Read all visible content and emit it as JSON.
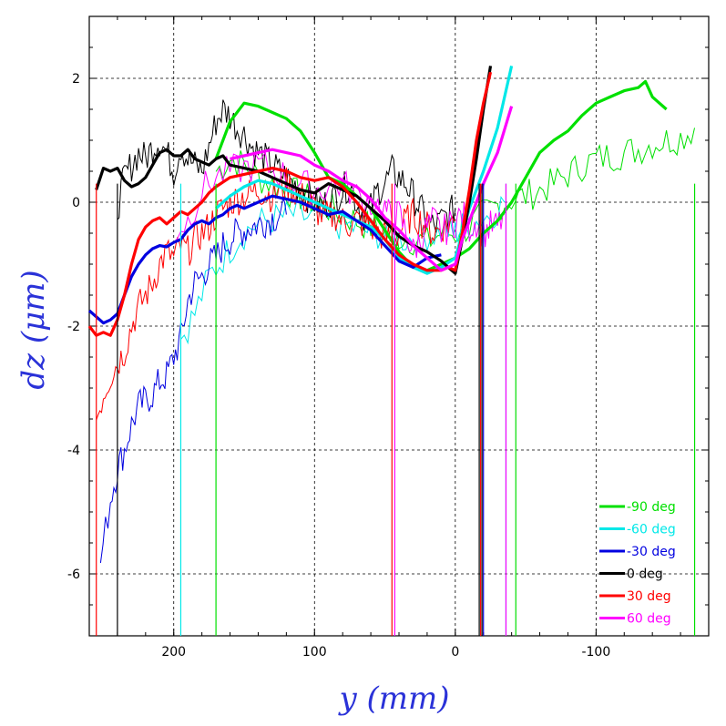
{
  "chart_data": {
    "type": "line",
    "xlabel": "y (mm)",
    "ylabel": "dz (μm)",
    "xlim": [
      260,
      -180
    ],
    "ylim": [
      -7,
      3
    ],
    "x_ticks": [
      200,
      100,
      0,
      -100
    ],
    "x_tick_labels": [
      "200",
      "100",
      "0",
      "-100"
    ],
    "y_ticks": [
      2,
      0,
      -2,
      -4,
      -6
    ],
    "y_tick_labels": [
      "2",
      "0",
      "-2",
      "-4",
      "-6"
    ],
    "grid": true,
    "legend_position": "bottom-right",
    "series": [
      {
        "name": "-90 deg",
        "color": "#00e000",
        "smooth": {
          "x": [
            170,
            160,
            150,
            140,
            130,
            120,
            110,
            100,
            95,
            90,
            80,
            70,
            60,
            50,
            40,
            30,
            20,
            10,
            5,
            0,
            -10,
            -20,
            -30,
            -40,
            -50,
            -60,
            -70,
            -80,
            -90,
            -100,
            -110,
            -120,
            -130,
            -135,
            -140,
            -150
          ],
          "y": [
            0.7,
            1.3,
            1.6,
            1.55,
            1.45,
            1.35,
            1.15,
            0.8,
            0.6,
            0.4,
            0.3,
            0.1,
            -0.1,
            -0.45,
            -0.8,
            -1.05,
            -1.1,
            -1.0,
            -0.95,
            -0.9,
            -0.75,
            -0.5,
            -0.3,
            0.0,
            0.4,
            0.8,
            1.0,
            1.15,
            1.4,
            1.6,
            1.7,
            1.8,
            1.85,
            1.95,
            1.7,
            1.5
          ]
        },
        "raw": {
          "x": [
            170,
            160,
            150,
            140,
            130,
            120,
            110,
            100,
            90,
            80,
            70,
            60,
            50,
            40,
            30,
            20,
            10,
            0,
            -10,
            -20,
            -30,
            -40,
            -50,
            -60,
            -70,
            -80,
            -90,
            -100,
            -110,
            -120,
            -130,
            -140,
            -150,
            -160,
            -170
          ],
          "y": [
            0.5,
            0.7,
            0.6,
            0.4,
            0.3,
            0.2,
            0.1,
            0.0,
            -0.1,
            -0.2,
            -0.3,
            -0.4,
            -0.5,
            -0.55,
            -0.6,
            -0.65,
            -0.5,
            -0.5,
            -0.4,
            -0.2,
            -0.05,
            0.05,
            0.1,
            0.2,
            0.3,
            0.45,
            0.6,
            0.7,
            0.75,
            0.8,
            0.85,
            0.95,
            1.0,
            1.05,
            1.2
          ]
        },
        "drops_x": [
          170,
          -43,
          -170
        ]
      },
      {
        "name": "-60 deg",
        "color": "#00e8e8",
        "smooth": {
          "x": [
            170,
            160,
            150,
            140,
            130,
            120,
            110,
            100,
            90,
            80,
            70,
            60,
            50,
            40,
            30,
            20,
            10,
            0,
            -5,
            -10,
            -20,
            -30,
            -40
          ],
          "y": [
            -0.1,
            0.1,
            0.25,
            0.35,
            0.3,
            0.2,
            0.1,
            0.0,
            -0.1,
            -0.2,
            -0.3,
            -0.4,
            -0.6,
            -0.9,
            -1.05,
            -1.15,
            -1.05,
            -0.9,
            -0.5,
            -0.1,
            0.5,
            1.2,
            2.2
          ]
        },
        "raw": {
          "x": [
            195,
            185,
            175,
            165,
            155,
            145,
            135,
            125,
            115,
            105,
            95,
            85,
            75,
            65,
            55,
            45,
            35,
            25,
            15,
            5,
            0,
            -5,
            -15,
            -25,
            -35
          ],
          "y": [
            -2.2,
            -1.8,
            -1.2,
            -0.9,
            -0.6,
            -0.4,
            -0.3,
            -0.25,
            -0.2,
            -0.25,
            -0.3,
            -0.35,
            -0.4,
            -0.45,
            -0.5,
            -0.55,
            -0.6,
            -0.55,
            -0.5,
            -0.45,
            -0.5,
            -0.4,
            -0.3,
            -0.2,
            0.0
          ]
        },
        "drops_x": [
          195,
          -36
        ]
      },
      {
        "name": "-30 deg",
        "color": "#0000e0",
        "smooth": {
          "x": [
            260,
            250,
            245,
            240,
            235,
            230,
            225,
            220,
            215,
            210,
            205,
            200,
            195,
            190,
            185,
            180,
            175,
            170,
            165,
            160,
            155,
            150,
            145,
            140,
            130,
            120,
            110,
            100,
            90,
            80,
            70,
            60,
            50,
            40,
            30,
            20,
            10
          ],
          "y": [
            -1.75,
            -1.95,
            -1.9,
            -1.8,
            -1.5,
            -1.2,
            -1.0,
            -0.85,
            -0.75,
            -0.7,
            -0.72,
            -0.65,
            -0.6,
            -0.45,
            -0.35,
            -0.3,
            -0.35,
            -0.25,
            -0.2,
            -0.1,
            -0.05,
            -0.1,
            -0.05,
            0.0,
            0.1,
            0.05,
            0.0,
            -0.1,
            -0.2,
            -0.15,
            -0.3,
            -0.45,
            -0.7,
            -0.95,
            -1.05,
            -0.9,
            -0.85
          ]
        },
        "raw": {
          "x": [
            252,
            245,
            240,
            235,
            230,
            225,
            220,
            215,
            210,
            205,
            200,
            195,
            190,
            185,
            180,
            175,
            170,
            165,
            160,
            155,
            150,
            145,
            140,
            135,
            130,
            125,
            120
          ],
          "y": [
            -5.8,
            -4.8,
            -4.3,
            -4.0,
            -3.6,
            -3.3,
            -3.2,
            -3.1,
            -2.9,
            -2.8,
            -2.5,
            -2.2,
            -1.6,
            -1.3,
            -1.2,
            -1.0,
            -0.9,
            -0.7,
            -0.6,
            -0.5,
            -0.45,
            -0.4,
            -0.35,
            -0.3,
            -0.25,
            -0.2,
            -0.2
          ]
        },
        "drops_x": [
          -20
        ]
      },
      {
        "name": "0 deg",
        "color": "#000000",
        "smooth": {
          "x": [
            255,
            250,
            245,
            240,
            235,
            230,
            225,
            220,
            215,
            210,
            205,
            200,
            195,
            190,
            185,
            180,
            175,
            170,
            165,
            160,
            150,
            140,
            130,
            120,
            110,
            100,
            90,
            80,
            70,
            60,
            50,
            40,
            30,
            20,
            10,
            5,
            0,
            -5,
            -10,
            -15,
            -20,
            -25
          ],
          "y": [
            0.2,
            0.55,
            0.5,
            0.55,
            0.35,
            0.25,
            0.3,
            0.4,
            0.6,
            0.8,
            0.85,
            0.75,
            0.75,
            0.85,
            0.7,
            0.65,
            0.6,
            0.7,
            0.75,
            0.6,
            0.55,
            0.5,
            0.4,
            0.3,
            0.2,
            0.15,
            0.3,
            0.2,
            0.1,
            -0.1,
            -0.3,
            -0.55,
            -0.7,
            -0.8,
            -0.95,
            -1.05,
            -1.15,
            -0.6,
            0.0,
            0.7,
            1.5,
            2.2
          ]
        },
        "raw": {
          "x": [
            240,
            235,
            230,
            225,
            220,
            215,
            210,
            205,
            200,
            195,
            190,
            185,
            180,
            175,
            170,
            165,
            160,
            155,
            150,
            145,
            140,
            135,
            130,
            125,
            120,
            115,
            110,
            105,
            100,
            95,
            90,
            85,
            80,
            75,
            70,
            65,
            60,
            55,
            50,
            45,
            40,
            35,
            30,
            25,
            20,
            15,
            10,
            5,
            0
          ],
          "y": [
            -0.1,
            0.4,
            0.6,
            0.8,
            0.7,
            0.9,
            1.0,
            0.8,
            0.5,
            0.9,
            0.7,
            0.6,
            0.5,
            0.9,
            1.3,
            1.5,
            1.4,
            1.2,
            1.1,
            0.9,
            0.8,
            0.7,
            0.6,
            0.5,
            0.4,
            0.3,
            0.2,
            0.1,
            0.0,
            -0.05,
            0.0,
            0.1,
            0.2,
            0.3,
            0.0,
            -0.2,
            -0.1,
            0.2,
            0.3,
            0.5,
            0.4,
            0.3,
            0.1,
            -0.1,
            -0.3,
            -0.4,
            -0.3,
            -0.2,
            -0.1
          ]
        },
        "drops_x": [
          240,
          -17,
          -19
        ]
      },
      {
        "name": "30 deg",
        "color": "#ff0000",
        "smooth": {
          "x": [
            260,
            255,
            250,
            245,
            240,
            235,
            230,
            225,
            220,
            215,
            210,
            205,
            200,
            195,
            190,
            185,
            180,
            175,
            170,
            160,
            150,
            140,
            130,
            120,
            110,
            100,
            90,
            80,
            70,
            60,
            50,
            40,
            30,
            20,
            10,
            5,
            0,
            -5,
            -10,
            -15,
            -20,
            -25
          ],
          "y": [
            -2.0,
            -2.15,
            -2.1,
            -2.15,
            -1.9,
            -1.5,
            -1.0,
            -0.6,
            -0.4,
            -0.3,
            -0.25,
            -0.35,
            -0.25,
            -0.15,
            -0.2,
            -0.1,
            0.0,
            0.15,
            0.25,
            0.4,
            0.45,
            0.5,
            0.55,
            0.5,
            0.4,
            0.35,
            0.4,
            0.25,
            0.0,
            -0.3,
            -0.6,
            -0.85,
            -1.0,
            -1.1,
            -1.1,
            -1.05,
            -1.1,
            -0.5,
            0.2,
            1.0,
            1.6,
            2.1
          ]
        },
        "raw": {
          "x": [
            255,
            250,
            245,
            240,
            235,
            230,
            225,
            220,
            215,
            210,
            205,
            200,
            195,
            190,
            185,
            180,
            175,
            170,
            165,
            160,
            155,
            150,
            145,
            140,
            135,
            130,
            125,
            120,
            115,
            110,
            105,
            100,
            95,
            90,
            85,
            80,
            75,
            70,
            65,
            60,
            55,
            50,
            45,
            40,
            35,
            30,
            25,
            20,
            15,
            10,
            5,
            0
          ],
          "y": [
            -3.5,
            -3.1,
            -2.8,
            -2.6,
            -2.4,
            -2.0,
            -1.7,
            -1.5,
            -1.3,
            -1.0,
            -0.8,
            -0.9,
            -0.7,
            -0.8,
            -0.6,
            -0.5,
            -0.4,
            -0.2,
            -0.1,
            0.0,
            0.05,
            0.1,
            0.15,
            0.2,
            0.15,
            0.1,
            0.2,
            0.3,
            0.2,
            0.1,
            0.0,
            -0.1,
            -0.2,
            -0.25,
            -0.2,
            -0.3,
            -0.35,
            -0.3,
            -0.35,
            -0.4,
            -0.5,
            -0.55,
            -0.6,
            -0.5,
            -0.3,
            -0.2,
            -0.3,
            -0.4,
            -0.5,
            -0.4,
            -0.35,
            -0.3
          ]
        },
        "drops_x": [
          255,
          45,
          -18
        ]
      },
      {
        "name": "60 deg",
        "color": "#ff00ff",
        "smooth": {
          "x": [
            160,
            150,
            140,
            130,
            120,
            110,
            100,
            90,
            80,
            70,
            60,
            50,
            40,
            30,
            20,
            10,
            5,
            0,
            -5,
            -10,
            -20,
            -30,
            -40
          ],
          "y": [
            0.7,
            0.75,
            0.8,
            0.85,
            0.8,
            0.75,
            0.6,
            0.5,
            0.35,
            0.25,
            0.05,
            -0.25,
            -0.45,
            -0.7,
            -0.9,
            -1.1,
            -1.05,
            -1.0,
            -0.6,
            -0.3,
            0.3,
            0.8,
            1.55
          ]
        },
        "raw": {
          "x": [
            200,
            190,
            180,
            170,
            160,
            150,
            140,
            130,
            120,
            110,
            100,
            90,
            80,
            70,
            60,
            50,
            45,
            40,
            35,
            30,
            25,
            20,
            15,
            10,
            5,
            0,
            -5,
            -10,
            -15,
            -20,
            -25,
            -30,
            -35
          ],
          "y": [
            -0.5,
            -0.3,
            0.2,
            0.4,
            0.5,
            0.55,
            0.6,
            0.55,
            0.4,
            0.3,
            0.2,
            0.25,
            0.3,
            0.1,
            0.0,
            -0.1,
            -0.3,
            -0.2,
            -0.5,
            -0.8,
            -0.6,
            -0.4,
            -0.3,
            -0.5,
            -0.4,
            -0.3,
            -0.2,
            -0.4,
            -0.3,
            -0.5,
            -0.4,
            -0.4,
            -0.2
          ]
        },
        "drops_x": [
          43,
          -36
        ]
      }
    ]
  }
}
